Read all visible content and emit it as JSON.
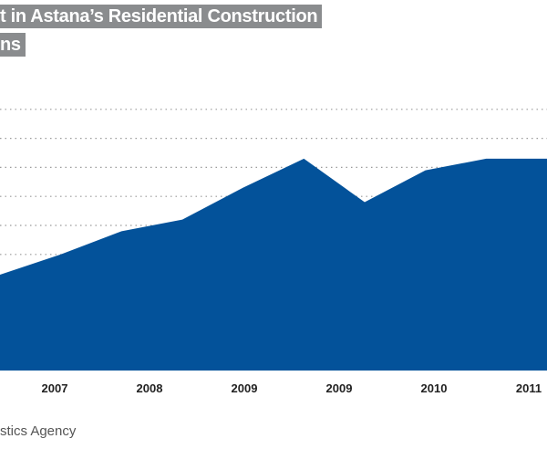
{
  "title_line1": "t in Astana’s Residential Construction",
  "title_line2": "ns",
  "source": "stics Agency",
  "colors": {
    "area": "#03529a",
    "gridline": "#9a9a9a",
    "title_bg": "#8a8c8e"
  },
  "chart_data": {
    "type": "area",
    "title": "t in Astana’s Residential Construction ns",
    "xlabel": "",
    "ylabel": "",
    "x_tick_labels": [
      "2007",
      "2008",
      "2009",
      "2009",
      "2010",
      "2011"
    ],
    "series": [
      {
        "values": [
          33,
          40,
          48,
          52,
          63,
          73,
          58,
          69,
          73,
          73
        ]
      }
    ],
    "ylim": [
      0,
      100
    ],
    "grid": true,
    "legend": "none"
  }
}
